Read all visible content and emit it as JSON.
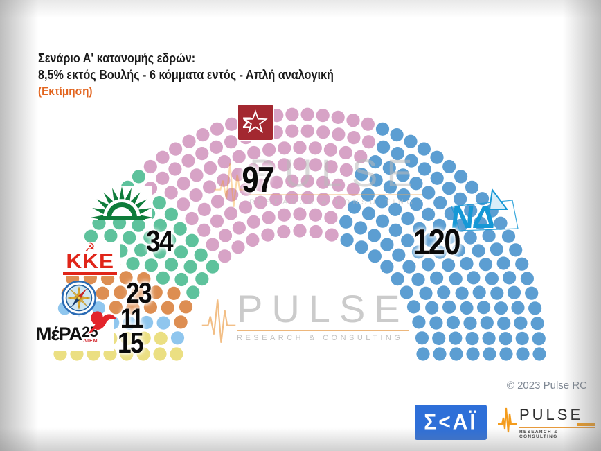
{
  "title": {
    "line1": "Σενάριο Α' κατανομής εδρών:",
    "line2": "8,5% εκτός Βουλής - 6 κόμματα εντός - Απλή αναλογική",
    "line3": "(Εκτίμηση)"
  },
  "chart_data": {
    "type": "parliament-hemicycle",
    "total_seats": 300,
    "legend_position": "overlaid party logos with seat counts",
    "series": [
      {
        "name": "ΜέΡΑ25",
        "seats": 15,
        "color": "#EBDF82"
      },
      {
        "name": "Πλεύση Ελευθερίας",
        "seats": 11,
        "color": "#8FC6EE"
      },
      {
        "name": "ΚΚΕ",
        "seats": 23,
        "color": "#DD8E52"
      },
      {
        "name": "ΠΑΣΟΚ",
        "seats": 34,
        "color": "#5EC29C"
      },
      {
        "name": "ΣΥΡΙΖΑ",
        "seats": 97,
        "color": "#D7A3C6"
      },
      {
        "name": "ΝΔ",
        "seats": 120,
        "color": "#5C9ED2"
      }
    ]
  },
  "logos": {
    "syriza_sigma": "Σ",
    "kke_symbol": "☭",
    "kke_text": "KKE",
    "mera_text": "ΜέΡΑ",
    "mera_num": "25",
    "mera_sub": "ΔιΕΜ",
    "nd_text": "ΝΔ",
    "skai_text": "Σ<ΑΪ"
  },
  "watermark": {
    "pulse": "PULSE",
    "sub": "RESEARCH & CONSULTING"
  },
  "footer": {
    "copyright": "© 2023 Pulse RC",
    "pulse": "PULSE",
    "pulse_sub": "RESEARCH & CONSULTING"
  },
  "colors": {
    "accent_orange": "#E2641E",
    "syriza_logo_red": "#A32830",
    "kke_red": "#E02519",
    "pasok_green": "#0E7C3A",
    "nd_blue": "#1598D6",
    "skai_blue": "#2E6FD8",
    "pulse_orange": "#F49C1D"
  }
}
